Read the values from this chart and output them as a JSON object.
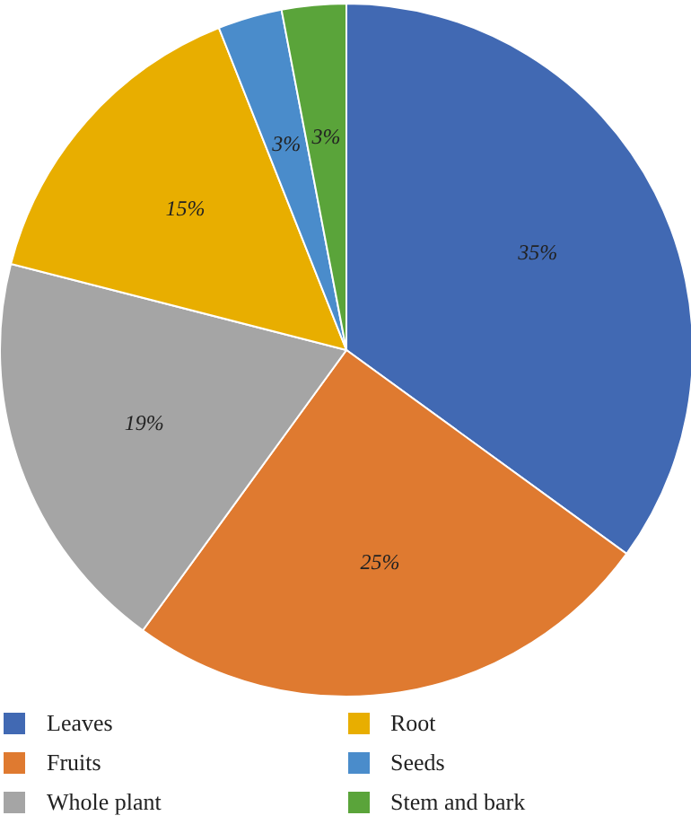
{
  "chart_data": {
    "type": "pie",
    "categories": [
      "Leaves",
      "Fruits",
      "Whole plant",
      "Root",
      "Seeds",
      "Stem and bark"
    ],
    "values": [
      35,
      25,
      19,
      15,
      3,
      3
    ],
    "colors": [
      "#4169b3",
      "#df7a30",
      "#a5a5a5",
      "#e8ae00",
      "#4a8ccb",
      "#5aa43a"
    ],
    "value_labels": [
      "35%",
      "25%",
      "19%",
      "15%",
      "3%",
      "3%"
    ],
    "legend": "bottom"
  }
}
